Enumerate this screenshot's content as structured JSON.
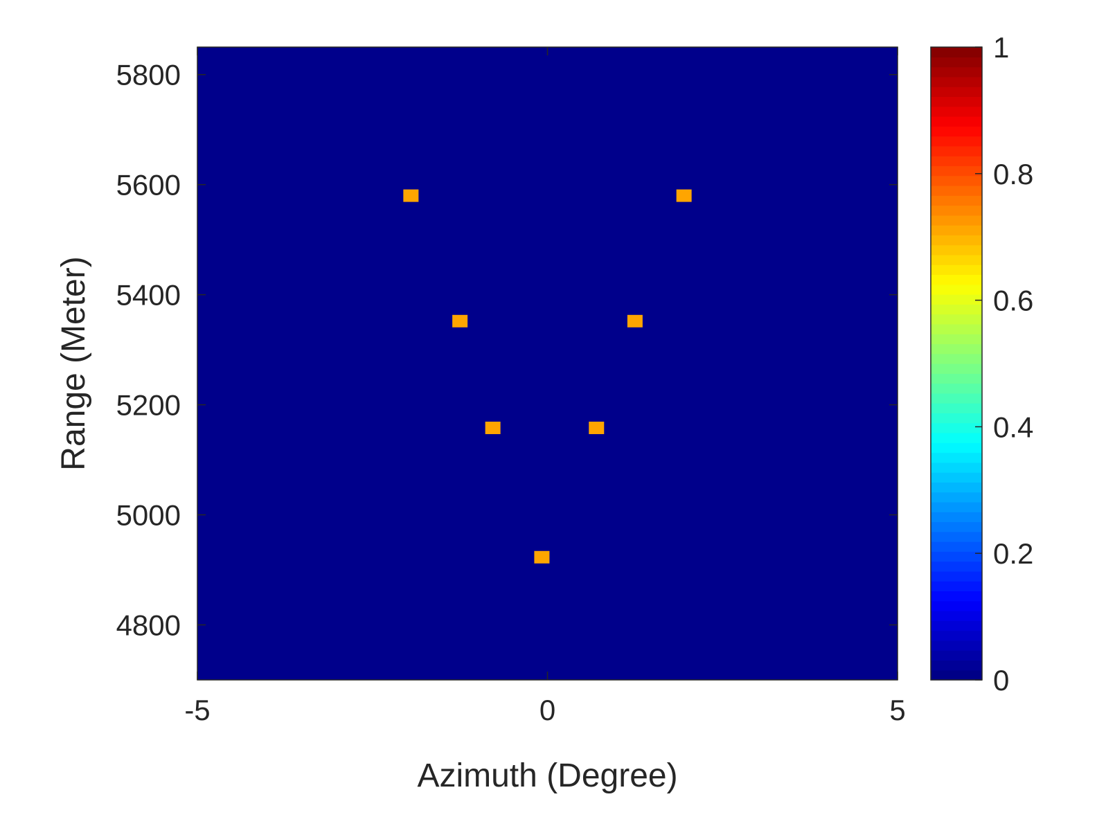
{
  "chart_data": {
    "type": "heatmap",
    "title": "",
    "xlabel": "Azimuth (Degree)",
    "ylabel": "Range (Meter)",
    "xlim": [
      -5,
      5
    ],
    "ylim": [
      4700,
      5850
    ],
    "x_ticks": [
      -5,
      0,
      5
    ],
    "y_ticks": [
      4800,
      5000,
      5200,
      5400,
      5600,
      5800
    ],
    "background_value": 0,
    "colormap": "jet",
    "colorbar": {
      "range": [
        0,
        1
      ],
      "ticks": [
        0,
        0.2,
        0.4,
        0.6,
        0.8,
        1
      ],
      "tick_labels": [
        "0",
        "0.2",
        "0.4",
        "0.6",
        "0.8",
        "1"
      ]
    },
    "points": [
      {
        "x": -1.95,
        "y": 5580,
        "value": 0.72
      },
      {
        "x": 1.95,
        "y": 5580,
        "value": 0.72
      },
      {
        "x": -1.25,
        "y": 5352,
        "value": 0.72
      },
      {
        "x": 1.25,
        "y": 5352,
        "value": 0.72
      },
      {
        "x": -0.78,
        "y": 5158,
        "value": 0.72
      },
      {
        "x": 0.7,
        "y": 5158,
        "value": 0.72
      },
      {
        "x": -0.08,
        "y": 4923,
        "value": 0.72
      }
    ],
    "grid": false,
    "legend": "none"
  },
  "colors": {
    "background_cell": "#00008b",
    "point": "#ffa500",
    "axis": "#262626"
  }
}
